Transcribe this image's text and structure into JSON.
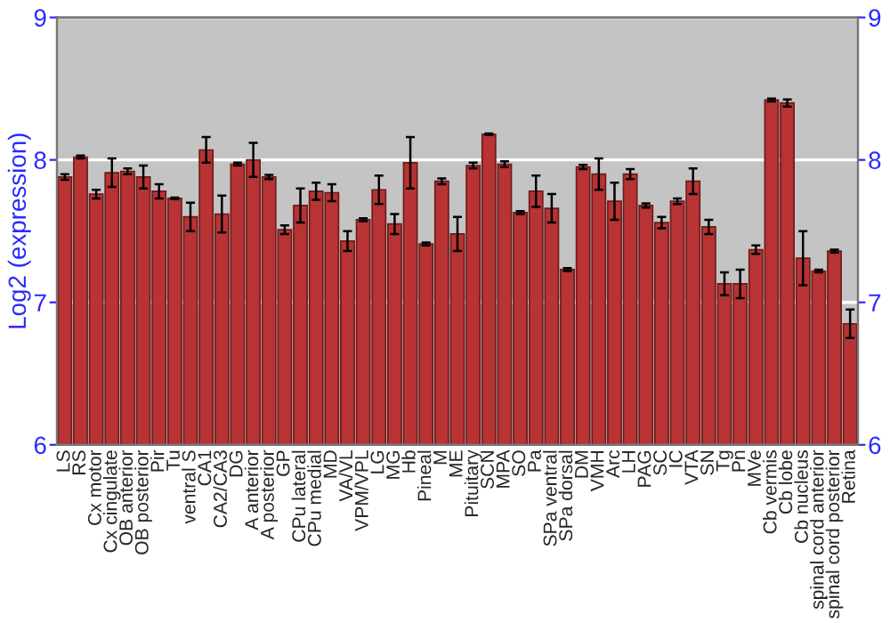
{
  "chart_data": {
    "type": "bar",
    "ylabel": "Log2 (expression)",
    "categories": [
      "LS",
      "RS",
      "Cx motor",
      "Cx cingulate",
      "OB anterior",
      "OB posterior",
      "Pir",
      "Tu",
      "ventral S",
      "CA1",
      "CA2/CA3",
      "DG",
      "A anterior",
      "A posterior",
      "GP",
      "CPu lateral",
      "CPu medial",
      "MD",
      "VA/VL",
      "VPM/VPL",
      "LG",
      "MG",
      "Hb",
      "Pineal",
      "M",
      "ME",
      "Pituitary",
      "SCN",
      "MPA",
      "SO",
      "Pa",
      "SPa ventral",
      "SPa dorsal",
      "DM",
      "VMH",
      "Arc",
      "LH",
      "PAG",
      "SC",
      "IC",
      "VTA",
      "SN",
      "Tg",
      "Pn",
      "MVe",
      "Cb vermis",
      "Cb lobe",
      "Cb nucleus",
      "spinal cord anterior",
      "spinal cord posterior",
      "Retina"
    ],
    "values": [
      7.88,
      8.02,
      7.76,
      7.91,
      7.92,
      7.88,
      7.78,
      7.73,
      7.6,
      8.07,
      7.62,
      7.97,
      8.0,
      7.88,
      7.51,
      7.68,
      7.78,
      7.77,
      7.43,
      7.58,
      7.79,
      7.55,
      7.98,
      7.41,
      7.85,
      7.48,
      7.96,
      8.18,
      7.97,
      7.63,
      7.78,
      7.66,
      7.23,
      7.95,
      7.9,
      7.71,
      7.9,
      7.68,
      7.56,
      7.71,
      7.85,
      7.53,
      7.13,
      7.13,
      7.37,
      8.42,
      8.4,
      7.31,
      7.22,
      7.36,
      6.85
    ],
    "errors": [
      0.02,
      0.01,
      0.03,
      0.1,
      0.02,
      0.08,
      0.05,
      0.005,
      0.1,
      0.09,
      0.13,
      0.01,
      0.12,
      0.015,
      0.03,
      0.12,
      0.06,
      0.06,
      0.07,
      0.01,
      0.1,
      0.07,
      0.18,
      0.01,
      0.02,
      0.12,
      0.02,
      0.005,
      0.02,
      0.01,
      0.11,
      0.1,
      0.01,
      0.015,
      0.11,
      0.13,
      0.035,
      0.015,
      0.04,
      0.02,
      0.09,
      0.05,
      0.08,
      0.1,
      0.03,
      0.01,
      0.025,
      0.19,
      0.01,
      0.01,
      0.1
    ],
    "color": "#b83333",
    "ylim": [
      6,
      9
    ],
    "yticks": [
      6,
      7,
      8,
      9
    ],
    "y2lim": [
      6,
      9
    ],
    "y2ticks": [
      6,
      7,
      8,
      9
    ],
    "grid": "y",
    "legend": false
  }
}
